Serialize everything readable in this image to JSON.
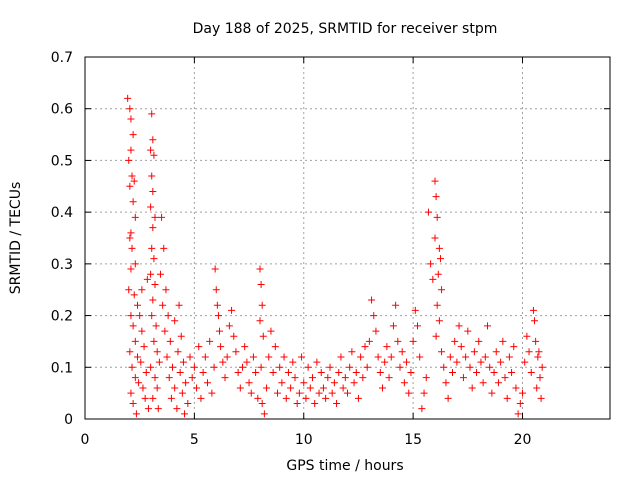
{
  "chart_data": {
    "type": "scatter",
    "title": "Day 188 of 2025, SRMTID for receiver stpm",
    "xlabel": "GPS time / hours",
    "ylabel": "SRMTID / TECUs",
    "xlim": [
      0,
      24
    ],
    "ylim": [
      0,
      0.7
    ],
    "xticks": [
      0,
      5,
      10,
      15,
      20
    ],
    "xtick_labels": [
      "0",
      "5",
      "10",
      "15",
      "20"
    ],
    "yticks": [
      0,
      0.1,
      0.2,
      0.3,
      0.4,
      0.5,
      0.6,
      0.7
    ],
    "ytick_labels": [
      "0",
      "0.1",
      "0.2",
      "0.3",
      "0.4",
      "0.5",
      "0.6",
      "0.7"
    ],
    "grid": true,
    "marker": "+",
    "color": "#ff0000",
    "series": [
      {
        "name": "SRMTID",
        "points": [
          [
            1.95,
            0.62
          ],
          [
            2.05,
            0.6
          ],
          [
            2.1,
            0.58
          ],
          [
            2.2,
            0.55
          ],
          [
            2.1,
            0.52
          ],
          [
            2.0,
            0.5
          ],
          [
            2.15,
            0.47
          ],
          [
            2.25,
            0.46
          ],
          [
            2.05,
            0.45
          ],
          [
            2.2,
            0.42
          ],
          [
            2.3,
            0.39
          ],
          [
            2.1,
            0.36
          ],
          [
            2.05,
            0.35
          ],
          [
            2.15,
            0.33
          ],
          [
            2.3,
            0.3
          ],
          [
            2.1,
            0.29
          ],
          [
            2.0,
            0.25
          ],
          [
            2.25,
            0.24
          ],
          [
            2.4,
            0.22
          ],
          [
            2.1,
            0.2
          ],
          [
            2.2,
            0.18
          ],
          [
            2.3,
            0.15
          ],
          [
            2.05,
            0.13
          ],
          [
            2.4,
            0.12
          ],
          [
            2.15,
            0.1
          ],
          [
            2.3,
            0.08
          ],
          [
            2.45,
            0.07
          ],
          [
            2.1,
            0.05
          ],
          [
            2.2,
            0.03
          ],
          [
            2.35,
            0.01
          ],
          [
            2.5,
            0.2
          ],
          [
            2.6,
            0.17
          ],
          [
            2.7,
            0.14
          ],
          [
            2.55,
            0.11
          ],
          [
            2.8,
            0.09
          ],
          [
            2.65,
            0.06
          ],
          [
            2.75,
            0.04
          ],
          [
            2.9,
            0.02
          ],
          [
            2.6,
            0.25
          ],
          [
            2.85,
            0.27
          ],
          [
            3.05,
            0.59
          ],
          [
            3.1,
            0.54
          ],
          [
            3.0,
            0.52
          ],
          [
            3.15,
            0.51
          ],
          [
            3.05,
            0.47
          ],
          [
            3.1,
            0.44
          ],
          [
            3.0,
            0.41
          ],
          [
            3.2,
            0.39
          ],
          [
            3.1,
            0.37
          ],
          [
            3.05,
            0.33
          ],
          [
            3.15,
            0.31
          ],
          [
            3.0,
            0.28
          ],
          [
            3.2,
            0.26
          ],
          [
            3.1,
            0.23
          ],
          [
            3.05,
            0.2
          ],
          [
            3.25,
            0.18
          ],
          [
            3.15,
            0.15
          ],
          [
            3.3,
            0.13
          ],
          [
            3.0,
            0.1
          ],
          [
            3.2,
            0.08
          ],
          [
            3.4,
            0.11
          ],
          [
            3.3,
            0.06
          ],
          [
            3.1,
            0.04
          ],
          [
            3.35,
            0.02
          ],
          [
            3.5,
            0.39
          ],
          [
            3.6,
            0.33
          ],
          [
            3.45,
            0.28
          ],
          [
            3.7,
            0.25
          ],
          [
            3.55,
            0.22
          ],
          [
            3.8,
            0.2
          ],
          [
            3.65,
            0.17
          ],
          [
            3.9,
            0.15
          ],
          [
            3.75,
            0.12
          ],
          [
            4.0,
            0.1
          ],
          [
            3.85,
            0.08
          ],
          [
            4.1,
            0.06
          ],
          [
            3.95,
            0.04
          ],
          [
            4.2,
            0.02
          ],
          [
            4.3,
            0.22
          ],
          [
            4.1,
            0.19
          ],
          [
            4.4,
            0.16
          ],
          [
            4.25,
            0.13
          ],
          [
            4.5,
            0.11
          ],
          [
            4.35,
            0.09
          ],
          [
            4.6,
            0.07
          ],
          [
            4.45,
            0.05
          ],
          [
            4.7,
            0.03
          ],
          [
            4.55,
            0.01
          ],
          [
            4.8,
            0.12
          ],
          [
            4.9,
            0.08
          ],
          [
            5.0,
            0.1
          ],
          [
            5.1,
            0.06
          ],
          [
            5.2,
            0.14
          ],
          [
            5.3,
            0.04
          ],
          [
            5.4,
            0.09
          ],
          [
            5.5,
            0.12
          ],
          [
            5.6,
            0.07
          ],
          [
            5.7,
            0.15
          ],
          [
            5.8,
            0.05
          ],
          [
            5.9,
            0.1
          ],
          [
            5.95,
            0.29
          ],
          [
            6.0,
            0.25
          ],
          [
            6.05,
            0.22
          ],
          [
            6.1,
            0.2
          ],
          [
            6.15,
            0.17
          ],
          [
            6.2,
            0.14
          ],
          [
            6.3,
            0.11
          ],
          [
            6.4,
            0.08
          ],
          [
            6.5,
            0.12
          ],
          [
            6.6,
            0.18
          ],
          [
            6.7,
            0.21
          ],
          [
            6.8,
            0.16
          ],
          [
            6.9,
            0.13
          ],
          [
            7.0,
            0.09
          ],
          [
            7.1,
            0.06
          ],
          [
            7.2,
            0.1
          ],
          [
            7.3,
            0.14
          ],
          [
            7.4,
            0.11
          ],
          [
            7.5,
            0.07
          ],
          [
            7.6,
            0.05
          ],
          [
            7.7,
            0.12
          ],
          [
            7.8,
            0.09
          ],
          [
            7.9,
            0.04
          ],
          [
            8.0,
            0.29
          ],
          [
            8.05,
            0.26
          ],
          [
            8.1,
            0.22
          ],
          [
            8.0,
            0.19
          ],
          [
            8.15,
            0.16
          ],
          [
            8.05,
            0.1
          ],
          [
            8.1,
            0.03
          ],
          [
            8.2,
            0.01
          ],
          [
            8.3,
            0.06
          ],
          [
            8.4,
            0.12
          ],
          [
            8.5,
            0.17
          ],
          [
            8.6,
            0.09
          ],
          [
            8.7,
            0.14
          ],
          [
            8.8,
            0.05
          ],
          [
            8.9,
            0.1
          ],
          [
            9.0,
            0.07
          ],
          [
            9.1,
            0.12
          ],
          [
            9.2,
            0.04
          ],
          [
            9.3,
            0.09
          ],
          [
            9.4,
            0.06
          ],
          [
            9.5,
            0.11
          ],
          [
            9.6,
            0.08
          ],
          [
            9.7,
            0.03
          ],
          [
            9.8,
            0.05
          ],
          [
            9.9,
            0.12
          ],
          [
            10.0,
            0.07
          ],
          [
            10.1,
            0.04
          ],
          [
            10.2,
            0.1
          ],
          [
            10.3,
            0.06
          ],
          [
            10.4,
            0.08
          ],
          [
            10.5,
            0.03
          ],
          [
            10.6,
            0.11
          ],
          [
            10.7,
            0.05
          ],
          [
            10.8,
            0.09
          ],
          [
            10.9,
            0.06
          ],
          [
            11.0,
            0.04
          ],
          [
            11.1,
            0.08
          ],
          [
            11.2,
            0.1
          ],
          [
            11.3,
            0.05
          ],
          [
            11.4,
            0.07
          ],
          [
            11.5,
            0.03
          ],
          [
            11.6,
            0.09
          ],
          [
            11.7,
            0.12
          ],
          [
            11.8,
            0.06
          ],
          [
            11.9,
            0.08
          ],
          [
            12.0,
            0.05
          ],
          [
            12.1,
            0.1
          ],
          [
            12.2,
            0.13
          ],
          [
            12.3,
            0.07
          ],
          [
            12.4,
            0.09
          ],
          [
            12.5,
            0.04
          ],
          [
            12.6,
            0.12
          ],
          [
            12.7,
            0.08
          ],
          [
            12.8,
            0.14
          ],
          [
            12.9,
            0.1
          ],
          [
            13.0,
            0.15
          ],
          [
            13.1,
            0.23
          ],
          [
            13.2,
            0.2
          ],
          [
            13.3,
            0.17
          ],
          [
            13.4,
            0.12
          ],
          [
            13.5,
            0.09
          ],
          [
            13.6,
            0.06
          ],
          [
            13.7,
            0.11
          ],
          [
            13.8,
            0.14
          ],
          [
            13.9,
            0.08
          ],
          [
            14.0,
            0.12
          ],
          [
            14.1,
            0.18
          ],
          [
            14.2,
            0.22
          ],
          [
            14.3,
            0.15
          ],
          [
            14.4,
            0.1
          ],
          [
            14.5,
            0.13
          ],
          [
            14.6,
            0.07
          ],
          [
            14.7,
            0.11
          ],
          [
            14.8,
            0.05
          ],
          [
            14.9,
            0.09
          ],
          [
            15.0,
            0.15
          ],
          [
            15.1,
            0.21
          ],
          [
            15.2,
            0.18
          ],
          [
            15.3,
            0.12
          ],
          [
            15.4,
            0.02
          ],
          [
            15.5,
            0.05
          ],
          [
            15.6,
            0.08
          ],
          [
            15.7,
            0.4
          ],
          [
            15.8,
            0.3
          ],
          [
            15.9,
            0.27
          ],
          [
            16.0,
            0.46
          ],
          [
            16.05,
            0.43
          ],
          [
            16.1,
            0.39
          ],
          [
            16.0,
            0.35
          ],
          [
            16.2,
            0.33
          ],
          [
            16.25,
            0.31
          ],
          [
            16.15,
            0.28
          ],
          [
            16.3,
            0.25
          ],
          [
            16.1,
            0.22
          ],
          [
            16.2,
            0.19
          ],
          [
            16.05,
            0.16
          ],
          [
            16.3,
            0.13
          ],
          [
            16.4,
            0.1
          ],
          [
            16.5,
            0.07
          ],
          [
            16.6,
            0.04
          ],
          [
            16.7,
            0.12
          ],
          [
            16.8,
            0.09
          ],
          [
            16.9,
            0.15
          ],
          [
            17.0,
            0.11
          ],
          [
            17.1,
            0.18
          ],
          [
            17.2,
            0.14
          ],
          [
            17.3,
            0.08
          ],
          [
            17.4,
            0.12
          ],
          [
            17.5,
            0.17
          ],
          [
            17.6,
            0.1
          ],
          [
            17.7,
            0.06
          ],
          [
            17.8,
            0.13
          ],
          [
            17.9,
            0.09
          ],
          [
            18.0,
            0.15
          ],
          [
            18.1,
            0.11
          ],
          [
            18.2,
            0.07
          ],
          [
            18.3,
            0.12
          ],
          [
            18.4,
            0.18
          ],
          [
            18.5,
            0.1
          ],
          [
            18.6,
            0.05
          ],
          [
            18.7,
            0.09
          ],
          [
            18.8,
            0.13
          ],
          [
            18.9,
            0.07
          ],
          [
            19.0,
            0.11
          ],
          [
            19.1,
            0.15
          ],
          [
            19.2,
            0.08
          ],
          [
            19.3,
            0.04
          ],
          [
            19.4,
            0.12
          ],
          [
            19.5,
            0.09
          ],
          [
            19.6,
            0.14
          ],
          [
            19.7,
            0.06
          ],
          [
            19.8,
            0.01
          ],
          [
            19.9,
            0.03
          ],
          [
            20.0,
            0.05
          ],
          [
            20.1,
            0.11
          ],
          [
            20.2,
            0.16
          ],
          [
            20.3,
            0.13
          ],
          [
            20.4,
            0.09
          ],
          [
            20.5,
            0.21
          ],
          [
            20.55,
            0.19
          ],
          [
            20.6,
            0.15
          ],
          [
            20.7,
            0.12
          ],
          [
            20.8,
            0.08
          ],
          [
            20.85,
            0.04
          ],
          [
            20.9,
            0.1
          ],
          [
            20.75,
            0.13
          ],
          [
            20.65,
            0.06
          ]
        ]
      }
    ]
  }
}
